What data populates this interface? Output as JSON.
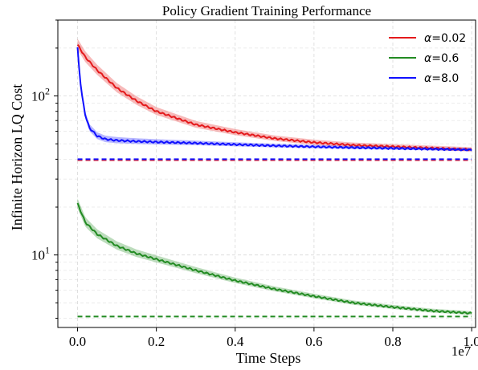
{
  "chart_data": {
    "type": "line",
    "title": "Policy Gradient Training Performance",
    "xlabel": "Time Steps",
    "ylabel": "Infinite Horizon LQ Cost",
    "x_offset_label": "1e7",
    "x_scale_factor": 10000000,
    "xlim": [
      -0.05,
      1.01
    ],
    "ylim": [
      3.5,
      300
    ],
    "yscale": "log",
    "grid": true,
    "legend_position": "top-right",
    "x_ticks": [
      0.0,
      0.2,
      0.4,
      0.6,
      0.8,
      1.0
    ],
    "x_tick_labels": [
      "0.0",
      "0.2",
      "0.4",
      "0.6",
      "0.8",
      "1.0"
    ],
    "y_major_ticks": [
      10,
      100
    ],
    "series": [
      {
        "name": "α=0.02",
        "legend_symbol": "α",
        "legend_value": "=0.02",
        "color": "#e41a1c",
        "x": [
          0.0,
          0.02,
          0.05,
          0.1,
          0.15,
          0.2,
          0.3,
          0.4,
          0.5,
          0.6,
          0.7,
          0.8,
          0.9,
          1.0
        ],
        "y": [
          210,
          175,
          145,
          112,
          93,
          80,
          66,
          59,
          54,
          51,
          49,
          48,
          47,
          46
        ],
        "band_frac": 0.09,
        "baseline": 39.5
      },
      {
        "name": "α=0.6",
        "legend_symbol": "α",
        "legend_value": "=0.6",
        "color": "#228b22",
        "x": [
          0.0,
          0.02,
          0.05,
          0.1,
          0.15,
          0.2,
          0.3,
          0.4,
          0.5,
          0.6,
          0.7,
          0.8,
          0.9,
          1.0
        ],
        "y": [
          21,
          16,
          13.5,
          11.4,
          10.2,
          9.4,
          8.0,
          6.9,
          6.1,
          5.5,
          5.0,
          4.7,
          4.45,
          4.3
        ],
        "band_frac": 0.08,
        "baseline": 4.1
      },
      {
        "name": "α=8.0",
        "legend_symbol": "α",
        "legend_value": "=8.0",
        "color": "#1010ff",
        "x": [
          0.0,
          0.005,
          0.01,
          0.02,
          0.03,
          0.05,
          0.07,
          0.1,
          0.15,
          0.2,
          0.3,
          0.4,
          0.5,
          0.6,
          0.7,
          0.8,
          0.9,
          1.0
        ],
        "y": [
          200,
          140,
          105,
          75,
          63,
          56,
          53.5,
          52.5,
          51.8,
          51.3,
          50.5,
          49.5,
          48.6,
          47.9,
          47.3,
          46.8,
          46.3,
          45.8
        ],
        "band_frac": 0.06,
        "baseline": 40
      }
    ]
  }
}
